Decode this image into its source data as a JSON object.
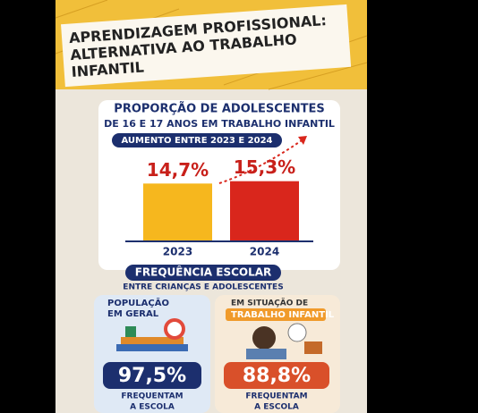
{
  "title": {
    "lines": [
      "APRENDIZAGEM PROFISSIONAL:",
      "ALTERNATIVA AO TRABALHO",
      "INFANTIL"
    ]
  },
  "proportion": {
    "heading": [
      "PROPORÇÃO DE ADOLESCENTES",
      "DE 16 E 17 ANOS EM TRABALHO INFANTIL"
    ],
    "subtitle": "AUMENTO ENTRE 2023 E 2024",
    "categories": [
      "2023",
      "2024"
    ],
    "values": [
      14.7,
      15.3
    ],
    "value_labels": [
      "14,7%",
      "15,3%"
    ],
    "colors": [
      "#f6b71e",
      "#d9261c"
    ]
  },
  "attendance": {
    "heading": "FREQUÊNCIA ESCOLAR",
    "subtitle": "ENTRE CRIANÇAS E ADOLESCENTES",
    "groups": [
      {
        "label": [
          "POPULAÇÃO",
          "EM GERAL"
        ],
        "value": "97,5%",
        "caption": [
          "FREQUENTAM",
          "A ESCOLA"
        ]
      },
      {
        "label": [
          "EM SITUAÇÃO DE",
          "TRABALHO INFANTIL"
        ],
        "value": "88,8%",
        "caption": [
          "FREQUENTAM",
          "A ESCOLA"
        ]
      }
    ]
  }
}
